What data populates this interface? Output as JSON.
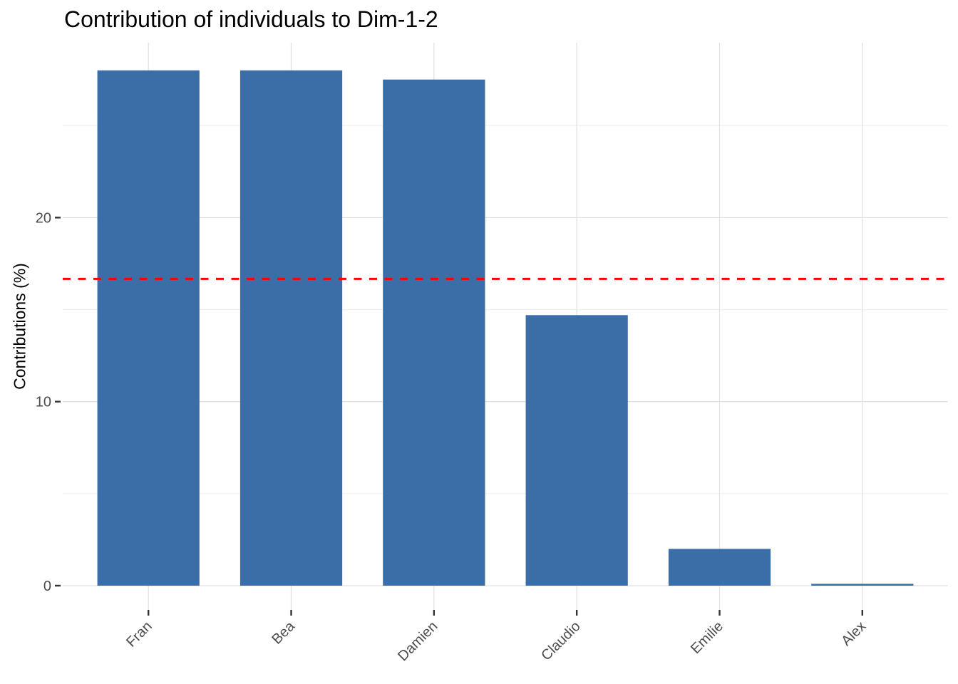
{
  "chart_data": {
    "type": "bar",
    "title": "Contribution of individuals to Dim-1-2",
    "xlabel": "",
    "ylabel": "Contributions (%)",
    "categories": [
      "Fran",
      "Bea",
      "Damien",
      "Claudio",
      "Emilie",
      "Alex"
    ],
    "values": [
      28.0,
      28.0,
      27.5,
      14.7,
      2.0,
      0.1
    ],
    "ylim": [
      0,
      29.5
    ],
    "y_major_ticks": [
      0,
      10,
      20
    ],
    "y_minor_gridlines": [
      5,
      15,
      25
    ],
    "grid": true,
    "legend_position": "none",
    "reference_line": {
      "value": 16.67,
      "style": "dashed",
      "color": "#FF0000"
    },
    "colors": {
      "bar_fill": "#3B6EA6",
      "grid_major": "#E2E2E2",
      "grid_minor": "#EFEFEF",
      "tick_mark": "#333333",
      "axis_text": "#4D4D4D",
      "title_text": "#000000",
      "background": "#FFFFFF"
    }
  }
}
